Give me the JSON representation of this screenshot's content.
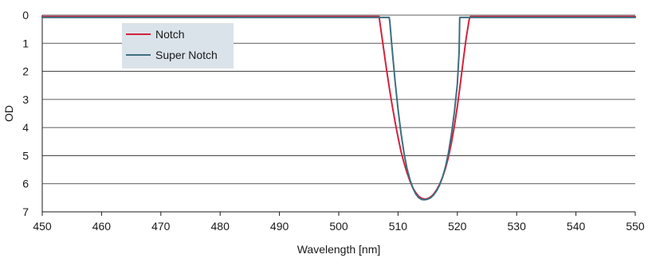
{
  "chart_data": {
    "type": "line",
    "title": "",
    "xlabel": "Wavelength [nm]",
    "ylabel": "OD",
    "xlim": [
      450,
      550
    ],
    "ylim": [
      0,
      7
    ],
    "y_inverted": true,
    "grid": {
      "horizontal": true,
      "vertical": false
    },
    "legend_position": "top-left",
    "x_ticks": [
      450,
      460,
      470,
      480,
      490,
      500,
      510,
      520,
      530,
      540,
      550
    ],
    "x_tick_labels": [
      "450",
      "460",
      "470",
      "480",
      "490",
      "500",
      "510",
      "520",
      "530",
      "540",
      "550"
    ],
    "y_ticks": [
      0,
      1,
      2,
      3,
      4,
      5,
      6,
      7
    ],
    "y_tick_labels": [
      "0",
      "1",
      "2",
      "3",
      "4",
      "5",
      "6",
      "7"
    ],
    "series": [
      {
        "name": "Notch",
        "color": "#d4213d",
        "x": [
          450,
          506.8,
          507,
          507.5,
          508,
          508.5,
          509,
          509.5,
          510,
          510.5,
          511,
          511.5,
          512,
          512.5,
          513,
          513.5,
          514,
          514.5,
          515,
          515.5,
          516,
          516.5,
          517,
          517.5,
          518,
          518.5,
          519,
          519.5,
          520,
          520.5,
          521,
          521.5,
          522,
          522.2,
          550
        ],
        "y": [
          0.05,
          0.05,
          0.35,
          1.1,
          1.85,
          2.55,
          3.2,
          3.8,
          4.35,
          4.85,
          5.25,
          5.6,
          5.9,
          6.15,
          6.32,
          6.45,
          6.52,
          6.55,
          6.53,
          6.47,
          6.37,
          6.22,
          6.02,
          5.77,
          5.45,
          5.05,
          4.55,
          3.95,
          3.25,
          2.45,
          1.6,
          0.8,
          0.15,
          0.05,
          0.05
        ]
      },
      {
        "name": "Super Notch",
        "color": "#3d6f7f",
        "x": [
          450,
          508.5,
          508.6,
          509,
          509.5,
          510,
          510.5,
          511,
          511.5,
          512,
          512.5,
          513,
          513.5,
          514,
          514.5,
          515,
          515.5,
          516,
          516.5,
          517,
          517.5,
          518,
          518.5,
          519,
          519.5,
          520,
          520.3,
          520.4,
          550
        ],
        "y": [
          0.08,
          0.08,
          0.2,
          1.2,
          2.35,
          3.35,
          4.2,
          4.9,
          5.45,
          5.85,
          6.15,
          6.37,
          6.5,
          6.56,
          6.57,
          6.55,
          6.5,
          6.4,
          6.25,
          6.05,
          5.77,
          5.4,
          4.9,
          4.25,
          3.45,
          2.45,
          1.3,
          0.08,
          0.08
        ]
      }
    ]
  }
}
